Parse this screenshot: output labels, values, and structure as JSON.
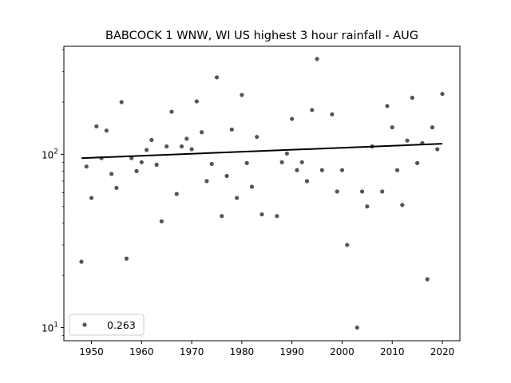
{
  "chart_data": {
    "type": "scatter",
    "title": "BABCOCK 1 WNW, WI US highest 3 hour rainfall - AUG",
    "xlabel": "",
    "ylabel": "",
    "xlim": [
      1944.5,
      2023.5
    ],
    "ylim": [
      8.4,
      420
    ],
    "yscale": "log",
    "grid": false,
    "legend_position": "lower-left",
    "x_ticks": [
      1950,
      1960,
      1970,
      1980,
      1990,
      2000,
      2010,
      2020
    ],
    "y_ticks": [
      {
        "value": 10,
        "label": "10",
        "base": "10",
        "exp": "1"
      },
      {
        "value": 100,
        "label": "10",
        "base": "10",
        "exp": "2"
      }
    ],
    "series": [
      {
        "name": "0.263",
        "color": "#555555",
        "points": [
          [
            1948,
            24
          ],
          [
            1949,
            85
          ],
          [
            1950,
            56
          ],
          [
            1951,
            145
          ],
          [
            1952,
            95
          ],
          [
            1953,
            137
          ],
          [
            1954,
            77
          ],
          [
            1955,
            64
          ],
          [
            1956,
            200
          ],
          [
            1957,
            25
          ],
          [
            1958,
            95
          ],
          [
            1959,
            80
          ],
          [
            1960,
            90
          ],
          [
            1961,
            106
          ],
          [
            1962,
            121
          ],
          [
            1963,
            87
          ],
          [
            1964,
            41
          ],
          [
            1965,
            111
          ],
          [
            1966,
            176
          ],
          [
            1967,
            59
          ],
          [
            1968,
            111
          ],
          [
            1969,
            123
          ],
          [
            1970,
            107
          ],
          [
            1971,
            202
          ],
          [
            1972,
            134
          ],
          [
            1973,
            70
          ],
          [
            1974,
            88
          ],
          [
            1975,
            278
          ],
          [
            1976,
            44
          ],
          [
            1977,
            75
          ],
          [
            1978,
            139
          ],
          [
            1979,
            56
          ],
          [
            1980,
            220
          ],
          [
            1981,
            89
          ],
          [
            1982,
            65
          ],
          [
            1983,
            126
          ],
          [
            1984,
            45
          ],
          [
            1987,
            44
          ],
          [
            1988,
            90
          ],
          [
            1989,
            101
          ],
          [
            1990,
            160
          ],
          [
            1991,
            81
          ],
          [
            1992,
            90
          ],
          [
            1993,
            70
          ],
          [
            1994,
            180
          ],
          [
            1995,
            355
          ],
          [
            1996,
            81
          ],
          [
            1998,
            170
          ],
          [
            1999,
            61
          ],
          [
            2000,
            81
          ],
          [
            2001,
            30
          ],
          [
            2003,
            10
          ],
          [
            2004,
            61
          ],
          [
            2005,
            50
          ],
          [
            2006,
            111
          ],
          [
            2008,
            61
          ],
          [
            2009,
            190
          ],
          [
            2010,
            143
          ],
          [
            2011,
            81
          ],
          [
            2012,
            51
          ],
          [
            2013,
            120
          ],
          [
            2014,
            212
          ],
          [
            2015,
            89
          ],
          [
            2016,
            116
          ],
          [
            2017,
            19
          ],
          [
            2018,
            143
          ],
          [
            2019,
            107
          ],
          [
            2020,
            223
          ]
        ]
      },
      {
        "type": "line",
        "color": "#000000",
        "points": [
          [
            1948,
            95
          ],
          [
            2020,
            115
          ]
        ]
      }
    ]
  }
}
